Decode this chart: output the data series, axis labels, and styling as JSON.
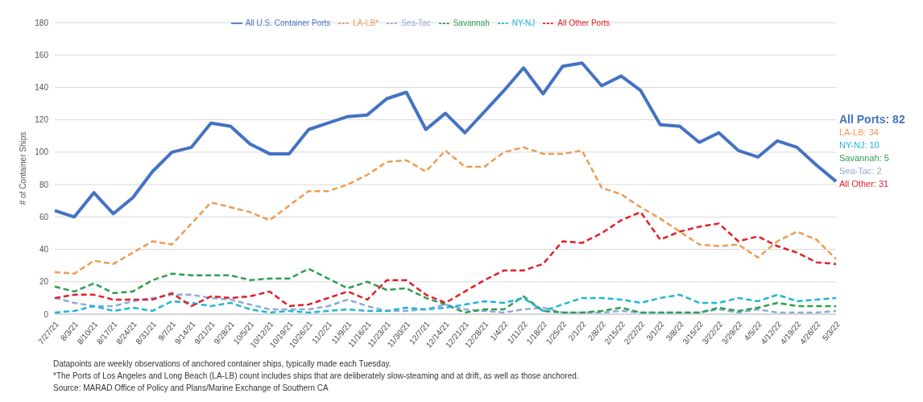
{
  "chart_data": {
    "type": "line",
    "ylabel": "# of Container Ships",
    "categories": [
      "7/27/21",
      "8/3/21",
      "8/10/21",
      "8/17/21",
      "8/24/21",
      "8/31/21",
      "9/7/21",
      "9/14/21",
      "9/21/21",
      "9/28/21",
      "10/5/21",
      "10/12/21",
      "10/19/21",
      "10/26/21",
      "11/2/21",
      "11/9/21",
      "11/16/21",
      "11/23/21",
      "11/30/21",
      "12/7/21",
      "12/14/21",
      "12/21/21",
      "12/28/21",
      "1/4/22",
      "1/11/22",
      "1/18/22",
      "1/25/22",
      "2/1/22",
      "2/8/22",
      "2/15/22",
      "2/22/22",
      "3/1/22",
      "3/8/22",
      "3/15/22",
      "3/22/22",
      "3/29/22",
      "4/5/22",
      "4/12/22",
      "4/19/22",
      "4/26/22",
      "5/3/22"
    ],
    "series": [
      {
        "name": "All U.S. Container Ports",
        "color": "#4472c4",
        "line_style": "solid",
        "values": [
          64,
          60,
          75,
          62,
          72,
          88,
          100,
          103,
          118,
          116,
          105,
          99,
          99,
          114,
          118,
          122,
          123,
          133,
          137,
          114,
          124,
          112,
          125,
          138,
          152,
          136,
          153,
          155,
          141,
          147,
          138,
          117,
          116,
          106,
          112,
          101,
          97,
          107,
          103,
          92,
          82
        ]
      },
      {
        "name": "LA-LB*",
        "color": "#ed9c54",
        "line_style": "dashed",
        "values": [
          26,
          25,
          33,
          31,
          38,
          45,
          43,
          56,
          69,
          66,
          63,
          58,
          67,
          76,
          76,
          80,
          86,
          94,
          95,
          88,
          101,
          91,
          91,
          100,
          103,
          99,
          99,
          101,
          78,
          74,
          66,
          59,
          51,
          43,
          42,
          43,
          35,
          45,
          51,
          46,
          34
        ]
      },
      {
        "name": "Sea-Tac",
        "color": "#8eaadb",
        "line_style": "dashed",
        "values": [
          10,
          7,
          5,
          5,
          8,
          10,
          12,
          12,
          10,
          9,
          6,
          3,
          3,
          3,
          5,
          9,
          5,
          2,
          2,
          3,
          6,
          3,
          2,
          1,
          3,
          4,
          1,
          1,
          1,
          2,
          1,
          1,
          1,
          1,
          3,
          1,
          3,
          1,
          1,
          1,
          2
        ]
      },
      {
        "name": "Savannah",
        "color": "#2e9e4f",
        "line_style": "dashed",
        "values": [
          17,
          14,
          19,
          13,
          14,
          21,
          25,
          24,
          24,
          24,
          21,
          22,
          22,
          28,
          22,
          16,
          20,
          15,
          16,
          10,
          6,
          1,
          3,
          3,
          11,
          2,
          1,
          1,
          2,
          4,
          1,
          1,
          1,
          1,
          4,
          2,
          4,
          7,
          5,
          5,
          5
        ]
      },
      {
        "name": "NY-NJ",
        "color": "#1fb5d8",
        "line_style": "dashed",
        "values": [
          1,
          2,
          5,
          2,
          4,
          2,
          8,
          7,
          5,
          7,
          3,
          1,
          2,
          1,
          2,
          3,
          2,
          2,
          4,
          3,
          4,
          6,
          8,
          7,
          10,
          2,
          6,
          10,
          10,
          9,
          7,
          10,
          12,
          7,
          7,
          10,
          8,
          12,
          8,
          9,
          10
        ]
      },
      {
        "name": "All Other Ports",
        "color": "#e0202a",
        "line_style": "dashed",
        "values": [
          10,
          12,
          12,
          9,
          9,
          9,
          13,
          5,
          11,
          10,
          11,
          14,
          5,
          6,
          10,
          14,
          9,
          21,
          21,
          12,
          7,
          14,
          21,
          27,
          27,
          31,
          45,
          44,
          50,
          58,
          63,
          46,
          51,
          54,
          56,
          45,
          48,
          42,
          38,
          32,
          31
        ]
      }
    ],
    "ylim": [
      0,
      180
    ],
    "yticks": [
      0,
      20,
      40,
      60,
      80,
      100,
      120,
      140,
      160,
      180
    ],
    "grid": "y",
    "legend": "top",
    "marker": "none",
    "annotations": [
      "All Ports: 82",
      "LA-LB: 34",
      "NY-NJ: 10",
      "Savannah: 5",
      "Sea-Tac: 2",
      "All Other: 31",
      "Datapoints are weekly observations of anchored container ships, typically made each Tuesday.",
      "*The Ports of Los Angeles and Long Beach (LA-LB) count includes ships that are deliberately slow-steaming and at drift, as well as those anchored.",
      "Source: MARAD Office of Policy and Plans/Marine Exchange of Southern CA"
    ]
  }
}
